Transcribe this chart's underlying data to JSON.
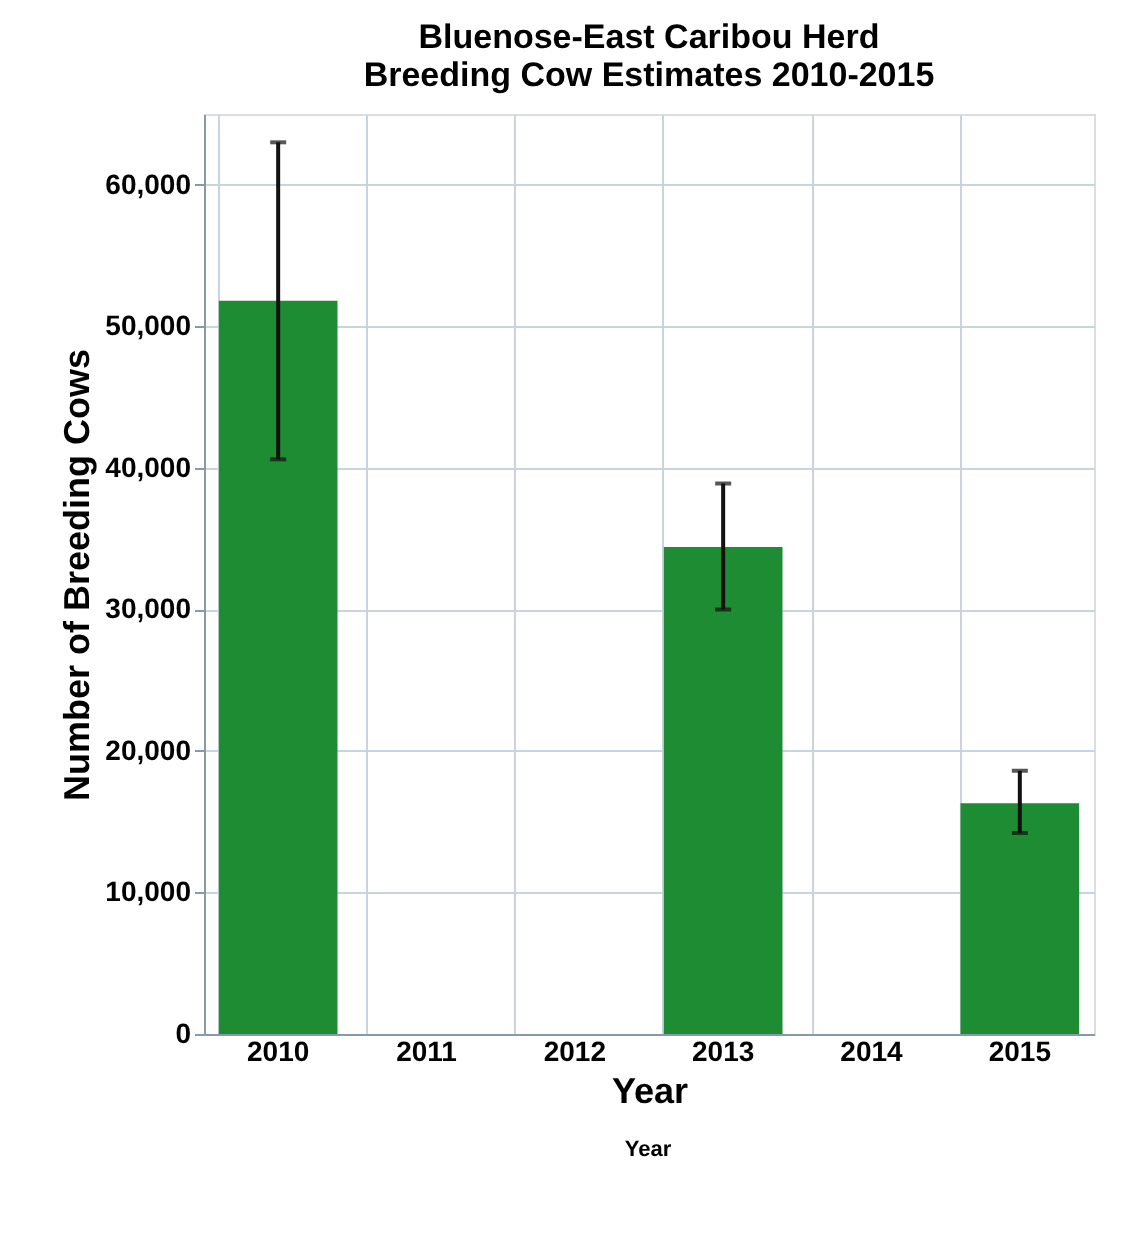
{
  "chart_data": {
    "type": "bar",
    "title": [
      "Bluenose-East Caribou Herd",
      "Breeding Cow Estimates 2010-2015"
    ],
    "categories": [
      "2010",
      "2011",
      "2012",
      "2013",
      "2014",
      "2015"
    ],
    "values": [
      51800,
      0,
      0,
      34400,
      0,
      16300
    ],
    "errors": [
      [
        40600,
        63000
      ],
      null,
      null,
      [
        30000,
        38900
      ],
      null,
      [
        14200,
        18600
      ]
    ],
    "color": "#1e8c32",
    "xlabel": "Year",
    "ylabel": "Number of Breeding Cows",
    "annotations": [
      "Year"
    ],
    "ylim": [
      0,
      65000
    ],
    "yticks": [
      {
        "value": 0,
        "label": "0"
      },
      {
        "value": 10000,
        "label": "10,000"
      },
      {
        "value": 20000,
        "label": "20,000"
      },
      {
        "value": 30000,
        "label": "30,000"
      },
      {
        "value": 40000,
        "label": "40,000"
      },
      {
        "value": 50000,
        "label": "50,000"
      },
      {
        "value": 60000,
        "label": "60,000"
      }
    ],
    "grid": true
  }
}
